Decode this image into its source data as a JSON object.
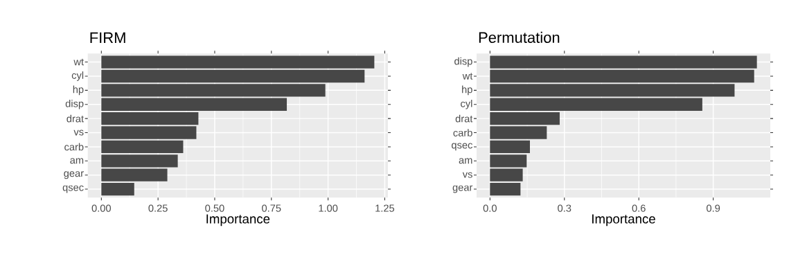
{
  "chart_data": [
    {
      "type": "bar",
      "orientation": "horizontal",
      "title": "FIRM",
      "xlabel": "Importance",
      "categories": [
        "wt",
        "cyl",
        "hp",
        "disp",
        "drat",
        "vs",
        "carb",
        "am",
        "gear",
        "qsec"
      ],
      "values": [
        1.204,
        1.161,
        0.988,
        0.818,
        0.428,
        0.419,
        0.361,
        0.337,
        0.291,
        0.145
      ],
      "color": "#474747",
      "xlim": [
        -0.06,
        1.264
      ],
      "xticks": [
        {
          "value": 0,
          "label": "0.00"
        },
        {
          "value": 0.25,
          "label": "0.25"
        },
        {
          "value": 0.5,
          "label": "0.50"
        },
        {
          "value": 0.75,
          "label": "0.75"
        },
        {
          "value": 1,
          "label": "1.00"
        },
        {
          "value": 1.25,
          "label": "1.25"
        }
      ],
      "grid": true
    },
    {
      "type": "bar",
      "orientation": "horizontal",
      "title": "Permutation",
      "xlabel": "Importance",
      "categories": [
        "disp",
        "wt",
        "hp",
        "cyl",
        "drat",
        "carb",
        "qsec",
        "am",
        "vs",
        "gear"
      ],
      "values": [
        1.076,
        1.065,
        0.986,
        0.856,
        0.281,
        0.229,
        0.161,
        0.148,
        0.132,
        0.123
      ],
      "color": "#474747",
      "xlim": [
        -0.054,
        1.13
      ],
      "xticks": [
        {
          "value": 0,
          "label": "0.0"
        },
        0.3,
        0.6,
        0.9
      ],
      "grid": true
    }
  ]
}
